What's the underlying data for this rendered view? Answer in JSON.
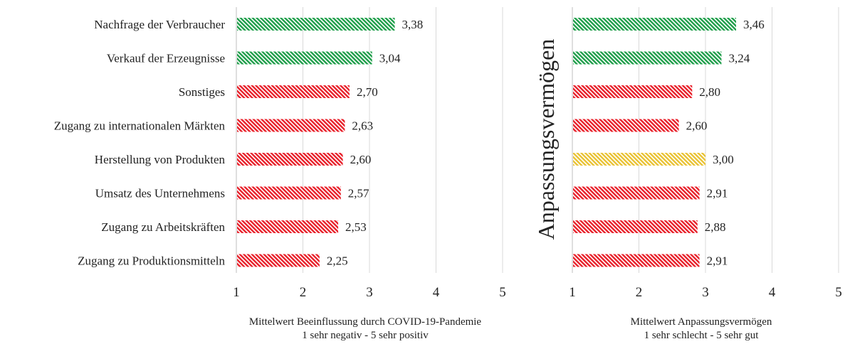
{
  "colors": {
    "green": "#1f9e4a",
    "red": "#e8202a",
    "yellow": "#e9c233",
    "grid": "#d9d9d9",
    "axis": "#bfbfbf"
  },
  "chart_data": [
    {
      "type": "bar",
      "orientation": "horizontal",
      "categories": [
        "Nachfrage der Verbraucher",
        "Verkauf der Erzeugnisse",
        "Sonstiges",
        "Zugang zu internationalen Märkten",
        "Herstellung von Produkten",
        "Umsatz des Unternehmens",
        "Zugang zu Arbeitskräften",
        "Zugang zu Produktionsmitteln"
      ],
      "values": [
        3.38,
        3.04,
        2.7,
        2.63,
        2.6,
        2.57,
        2.53,
        2.25
      ],
      "value_labels": [
        "3,38",
        "3,04",
        "2,70",
        "2,63",
        "2,60",
        "2,57",
        "2,53",
        "2,25"
      ],
      "bar_colors": [
        "green",
        "green",
        "red",
        "red",
        "red",
        "red",
        "red",
        "red"
      ],
      "xlim": [
        1,
        5
      ],
      "xticks": [
        "1",
        "2",
        "3",
        "4",
        "5"
      ],
      "xlabel_line1": "Mittelwert Beeinflussung durch  COVID-19-Pandemie",
      "xlabel_line2": "1 sehr negativ - 5 sehr positiv",
      "grid": true,
      "bar_fill": "diagonal hatch"
    },
    {
      "type": "bar",
      "orientation": "horizontal",
      "side_label": "Anpassungsvermögen",
      "values": [
        3.46,
        3.24,
        2.8,
        2.6,
        3.0,
        2.91,
        2.88,
        2.91
      ],
      "value_labels": [
        "3,46",
        "3,24",
        "2,80",
        "2,60",
        "3,00",
        "2,91",
        "2,88",
        "2,91"
      ],
      "bar_colors": [
        "green",
        "green",
        "red",
        "red",
        "yellow",
        "red",
        "red",
        "red"
      ],
      "xlim": [
        1,
        5
      ],
      "xticks": [
        "1",
        "2",
        "3",
        "4",
        "5"
      ],
      "xlabel_line1": "Mittelwert Anpassungsvermögen",
      "xlabel_line2": "1 sehr schlecht - 5 sehr gut",
      "grid": true,
      "bar_fill": "diagonal hatch"
    }
  ]
}
